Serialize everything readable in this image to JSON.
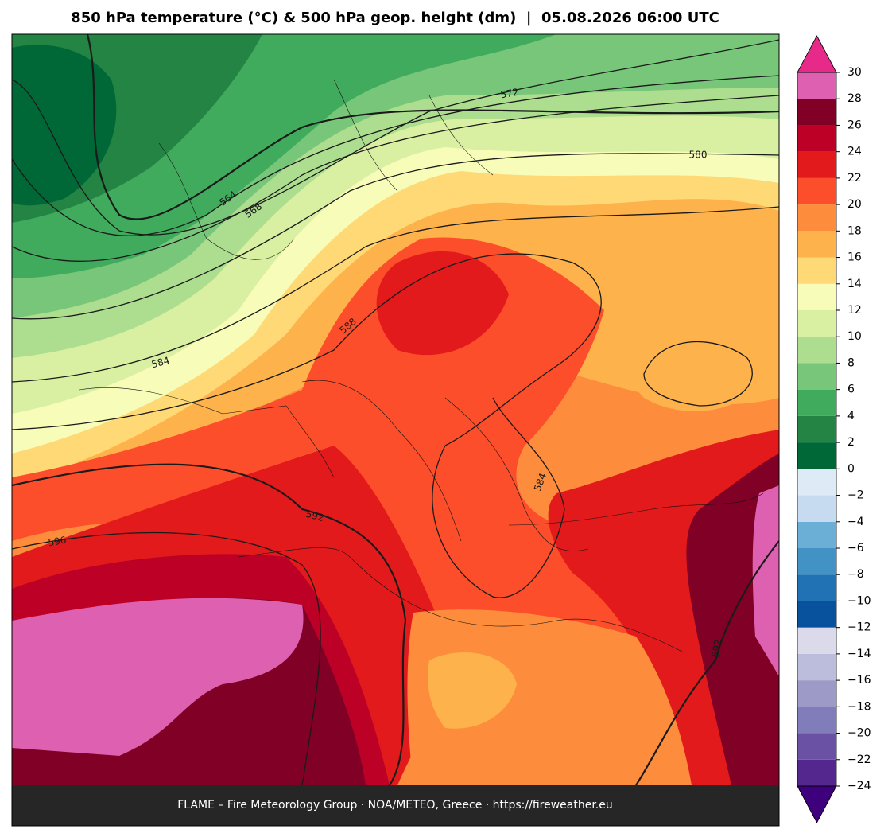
{
  "header": {
    "title": "850 hPa temperature (°C) & 500 hPa geop. height (dm)  |  05.08.2026 06:00 UTC"
  },
  "map": {
    "contour_labels": [
      "572",
      "580",
      "564",
      "568",
      "584",
      "588",
      "592",
      "596",
      "584",
      "592"
    ]
  },
  "colorbar": {
    "levels": [
      -24,
      -22,
      -20,
      -18,
      -16,
      -14,
      -12,
      -10,
      -8,
      -6,
      -4,
      -2,
      0,
      2,
      4,
      6,
      8,
      10,
      12,
      14,
      16,
      18,
      20,
      22,
      24,
      26,
      28,
      30
    ],
    "colors": [
      "#54278f",
      "#6a51a3",
      "#807dba",
      "#9e9ac8",
      "#bcbddc",
      "#dadaeb",
      "#08519c",
      "#2171b5",
      "#4292c6",
      "#6baed6",
      "#c6dbef",
      "#deebf7",
      "#006837",
      "#238443",
      "#41ab5d",
      "#78c679",
      "#addd8e",
      "#d9f0a3",
      "#f7fcb9",
      "#fed976",
      "#feb24c",
      "#fd8d3c",
      "#fc4e2a",
      "#e31a1c",
      "#bd0026",
      "#800026",
      "#de60b0"
    ],
    "extend_colors": {
      "min": "#3f007d",
      "max": "#e7298a"
    },
    "ticks": [
      30,
      28,
      26,
      24,
      22,
      20,
      18,
      16,
      14,
      12,
      10,
      8,
      6,
      4,
      2,
      0,
      {
        "value": -2,
        "label": "−2"
      },
      {
        "value": -4,
        "label": "−4"
      },
      {
        "value": -6,
        "label": "−6"
      },
      {
        "value": -8,
        "label": "−8"
      },
      {
        "value": -10,
        "label": "−10"
      },
      {
        "value": -12,
        "label": "−12"
      },
      {
        "value": -14,
        "label": "−14"
      },
      {
        "value": -16,
        "label": "−16"
      },
      {
        "value": -18,
        "label": "−18"
      },
      {
        "value": -20,
        "label": "−20"
      },
      {
        "value": -22,
        "label": "−22"
      },
      {
        "value": -24,
        "label": "−24"
      }
    ]
  },
  "footer": {
    "text": "FLAME – Fire Meteorology Group · NOA/METEO, Greece · https://fireweather.eu"
  }
}
